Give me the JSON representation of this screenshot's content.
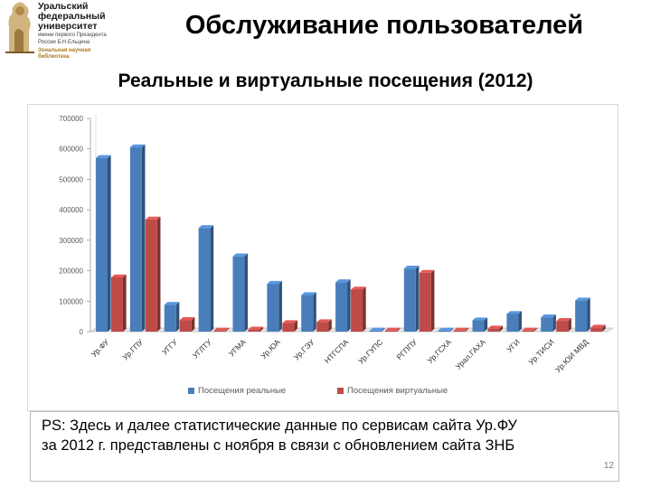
{
  "logo": {
    "lines": [
      "Уральский",
      "федеральный",
      "университет"
    ],
    "sub": [
      "имени первого Президента",
      "России Б.Н.Ельцина"
    ],
    "lib": [
      "Зональная научная",
      "библиотека"
    ]
  },
  "title": "Обслуживание пользователей",
  "subtitle": "Реальные и виртуальные посещения (2012)",
  "chart_data": {
    "type": "bar",
    "categories": [
      "Ур.ФУ",
      "Ур.ГПУ",
      "УГГУ",
      "УГЛТУ",
      "УГМА",
      "Ур.ЮА",
      "Ур.ГЭУ",
      "НТГСПА",
      "Ур.ГУПС",
      "РГППУ",
      "Ур.ГСХА",
      "Урал.ГАХА",
      "УГИ",
      "Ур.ТИСИ",
      "Ур.ЮИ МВД"
    ],
    "series": [
      {
        "name": "Посещения реальные",
        "color": "#4a7ebb",
        "values": [
          570000,
          605000,
          88000,
          340000,
          247000,
          157000,
          120000,
          162000,
          1000,
          207000,
          1000,
          37000,
          58000,
          47000,
          102000
        ]
      },
      {
        "name": "Посещения виртуальные",
        "color": "#be4b48",
        "values": [
          178000,
          368000,
          38000,
          1000,
          7000,
          28000,
          31000,
          138000,
          1000,
          193000,
          1000,
          10000,
          2000,
          35000,
          13000
        ]
      }
    ],
    "ylim": [
      0,
      700000
    ],
    "yticks": [
      "0",
      "100000",
      "200000",
      "300000",
      "400000",
      "500000",
      "600000",
      "700000"
    ],
    "grid": false,
    "legend": "bottom"
  },
  "ps": {
    "line1": "PS: Здесь и далее статистические данные по сервисам сайта Ур.ФУ",
    "line2": "за 2012 г. представлены с ноября в связи с обновлением сайта ЗНБ"
  },
  "page_number": "12"
}
